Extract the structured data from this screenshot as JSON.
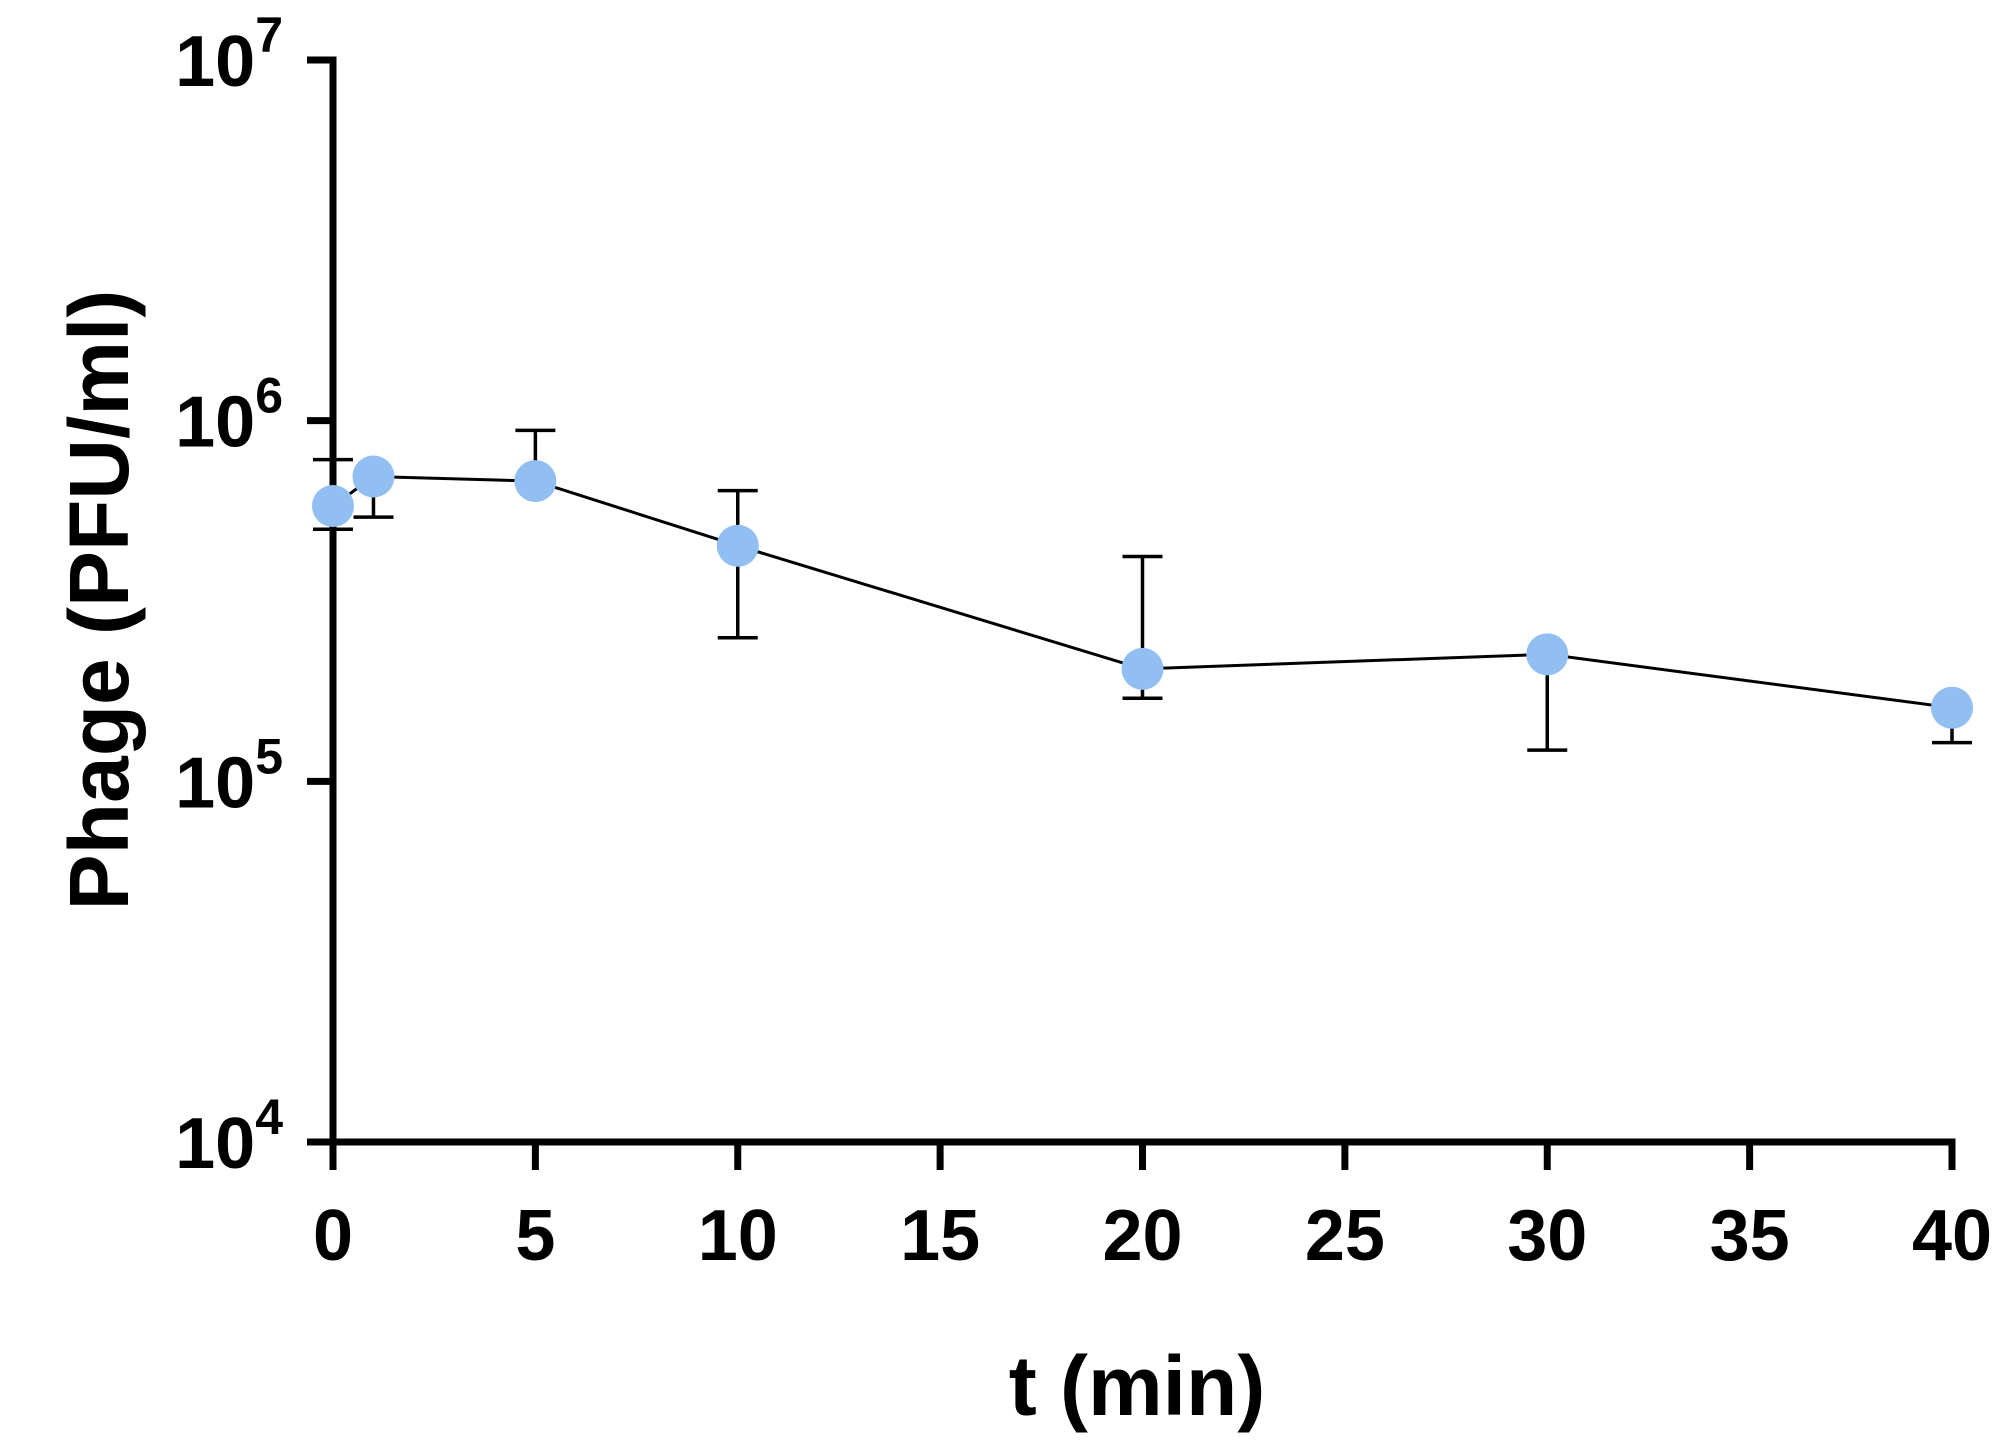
{
  "chart_data": {
    "type": "line",
    "title": "",
    "xlabel": "t (min)",
    "ylabel": "Phage (PFU/ml)",
    "xlim": [
      0,
      40
    ],
    "ylim": [
      10000,
      10000000
    ],
    "yscale": "log",
    "grid": false,
    "x_ticks": [
      0,
      5,
      10,
      15,
      20,
      25,
      30,
      35,
      40
    ],
    "y_ticks": [
      {
        "value": 10000,
        "base": "10",
        "exp": "4"
      },
      {
        "value": 100000,
        "base": "10",
        "exp": "5"
      },
      {
        "value": 1000000,
        "base": "10",
        "exp": "6"
      },
      {
        "value": 10000000,
        "base": "10",
        "exp": "7"
      }
    ],
    "marker_color": "#92BFF2",
    "line_color": "#000000",
    "series": [
      {
        "x": [
          0,
          1,
          5,
          10,
          20,
          30,
          40
        ],
        "y": [
          580000,
          700000,
          680000,
          450000,
          205000,
          225000,
          160000
        ],
        "err_upper": [
          780000,
          700000,
          940000,
          640000,
          420000,
          225000,
          160000
        ],
        "err_lower": [
          500000,
          540000,
          680000,
          250000,
          170000,
          122000,
          128000
        ]
      }
    ]
  }
}
